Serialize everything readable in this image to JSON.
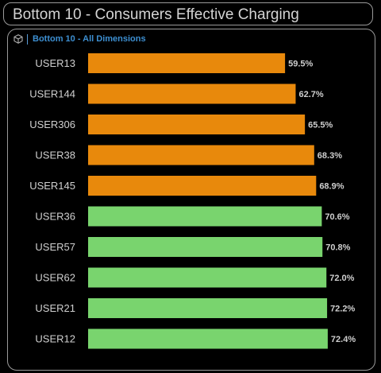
{
  "header": {
    "title": "Bottom 10 - Consumers Effective Charging"
  },
  "panel": {
    "subtitle": "Bottom 10 - All Dimensions",
    "icon": "cube-icon"
  },
  "colors": {
    "below_threshold": "#e8890c",
    "above_threshold": "#79d46e",
    "text": "#d0d0d0",
    "subtitle": "#3d8fd1",
    "border": "#9a9a9a"
  },
  "chart_data": {
    "type": "bar",
    "orientation": "horizontal",
    "categories": [
      "USER13",
      "USER144",
      "USER306",
      "USER38",
      "USER145",
      "USER36",
      "USER57",
      "USER62",
      "USER21",
      "USER12"
    ],
    "values": [
      59.5,
      62.7,
      65.5,
      68.3,
      68.9,
      70.6,
      70.8,
      72.0,
      72.2,
      72.4
    ],
    "value_labels": [
      "59.5%",
      "62.7%",
      "65.5%",
      "68.3%",
      "68.9%",
      "70.6%",
      "70.8%",
      "72.0%",
      "72.2%",
      "72.4%"
    ],
    "unit": "%",
    "color_threshold": 70,
    "xlim": [
      0,
      85
    ],
    "grid": false,
    "legend": "none"
  }
}
